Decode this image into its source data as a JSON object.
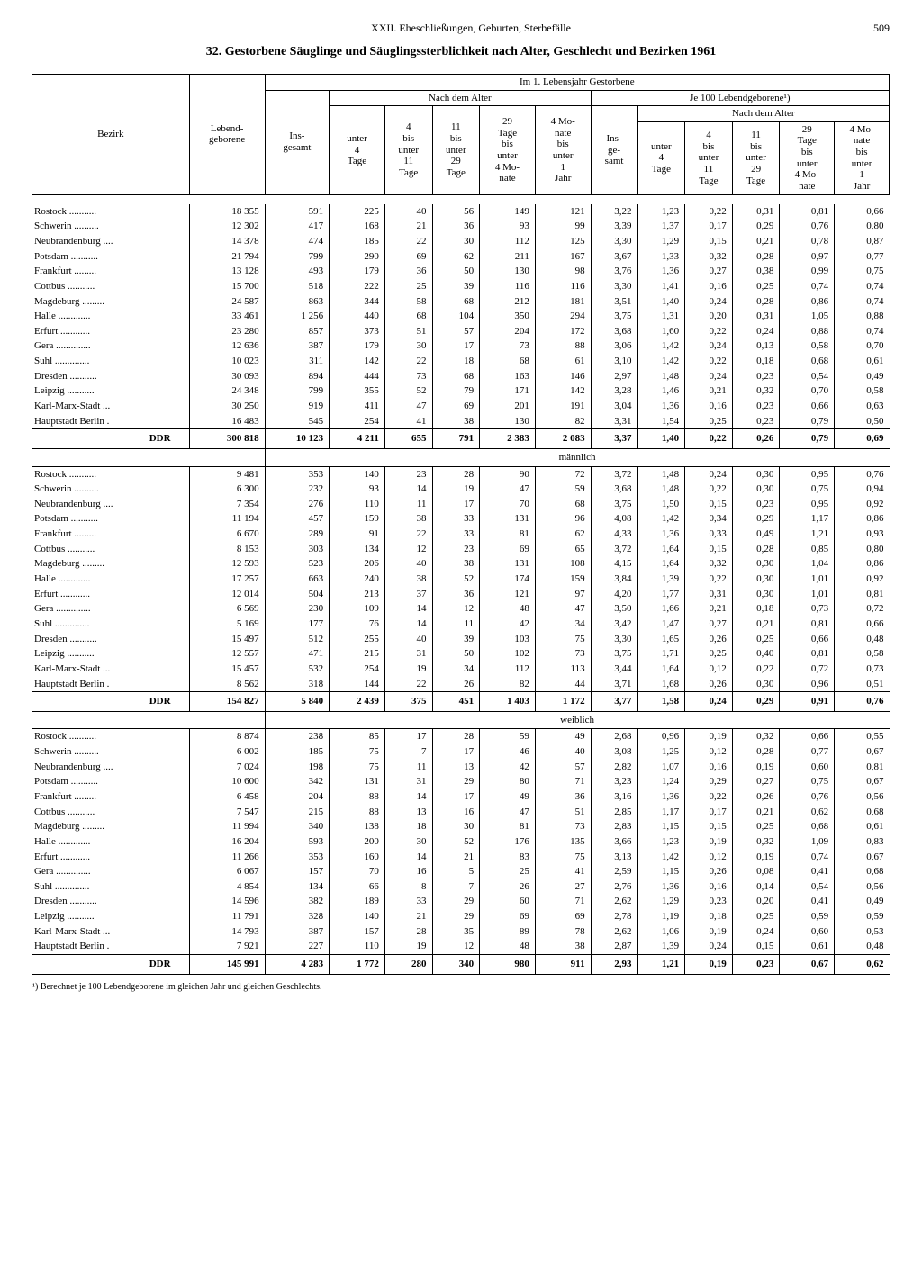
{
  "header": {
    "chapter": "XXII. Eheschließungen, Geburten, Sterbefälle",
    "page": "509"
  },
  "title": "32. Gestorbene Säuglinge und Säuglingssterblichkeit nach Alter, Geschlecht und Bezirken 1961",
  "col_headers": {
    "bezirk": "Bezirk",
    "lebend": "Lebend-\ngeborene",
    "im_ersten": "Im 1. Lebensjahr Gestorbene",
    "je100": "Je 100 Lebendgeborene¹)",
    "nach_alter": "Nach dem Alter",
    "insgesamt": "Ins-\ngesamt",
    "insgesamt2": "Ins-\nge-\nsamt",
    "c1": "unter\n4\nTage",
    "c2": "4\nbis\nunter\n11\nTage",
    "c3": "11\nbis\nunter\n29\nTage",
    "c4": "29\nTage\nbis\nunter\n4 Mo-\nnate",
    "c5": "4 Mo-\nnate\nbis\nunter\n1\nJahr"
  },
  "sections": [
    {
      "label": "",
      "rows": [
        [
          "Rostock",
          "18 355",
          "591",
          "225",
          "40",
          "56",
          "149",
          "121",
          "3,22",
          "1,23",
          "0,22",
          "0,31",
          "0,81",
          "0,66"
        ],
        [
          "Schwerin",
          "12 302",
          "417",
          "168",
          "21",
          "36",
          "93",
          "99",
          "3,39",
          "1,37",
          "0,17",
          "0,29",
          "0,76",
          "0,80"
        ],
        [
          "Neubrandenburg",
          "14 378",
          "474",
          "185",
          "22",
          "30",
          "112",
          "125",
          "3,30",
          "1,29",
          "0,15",
          "0,21",
          "0,78",
          "0,87"
        ],
        [
          "Potsdam",
          "21 794",
          "799",
          "290",
          "69",
          "62",
          "211",
          "167",
          "3,67",
          "1,33",
          "0,32",
          "0,28",
          "0,97",
          "0,77"
        ],
        [
          "Frankfurt",
          "13 128",
          "493",
          "179",
          "36",
          "50",
          "130",
          "98",
          "3,76",
          "1,36",
          "0,27",
          "0,38",
          "0,99",
          "0,75"
        ],
        [
          "Cottbus",
          "15 700",
          "518",
          "222",
          "25",
          "39",
          "116",
          "116",
          "3,30",
          "1,41",
          "0,16",
          "0,25",
          "0,74",
          "0,74"
        ],
        [
          "Magdeburg",
          "24 587",
          "863",
          "344",
          "58",
          "68",
          "212",
          "181",
          "3,51",
          "1,40",
          "0,24",
          "0,28",
          "0,86",
          "0,74"
        ],
        [
          "Halle",
          "33 461",
          "1 256",
          "440",
          "68",
          "104",
          "350",
          "294",
          "3,75",
          "1,31",
          "0,20",
          "0,31",
          "1,05",
          "0,88"
        ],
        [
          "Erfurt",
          "23 280",
          "857",
          "373",
          "51",
          "57",
          "204",
          "172",
          "3,68",
          "1,60",
          "0,22",
          "0,24",
          "0,88",
          "0,74"
        ],
        [
          "Gera",
          "12 636",
          "387",
          "179",
          "30",
          "17",
          "73",
          "88",
          "3,06",
          "1,42",
          "0,24",
          "0,13",
          "0,58",
          "0,70"
        ],
        [
          "Suhl",
          "10 023",
          "311",
          "142",
          "22",
          "18",
          "68",
          "61",
          "3,10",
          "1,42",
          "0,22",
          "0,18",
          "0,68",
          "0,61"
        ],
        [
          "Dresden",
          "30 093",
          "894",
          "444",
          "73",
          "68",
          "163",
          "146",
          "2,97",
          "1,48",
          "0,24",
          "0,23",
          "0,54",
          "0,49"
        ],
        [
          "Leipzig",
          "24 348",
          "799",
          "355",
          "52",
          "79",
          "171",
          "142",
          "3,28",
          "1,46",
          "0,21",
          "0,32",
          "0,70",
          "0,58"
        ],
        [
          "Karl-Marx-Stadt",
          "30 250",
          "919",
          "411",
          "47",
          "69",
          "201",
          "191",
          "3,04",
          "1,36",
          "0,16",
          "0,23",
          "0,66",
          "0,63"
        ],
        [
          "Hauptstadt Berlin",
          "16 483",
          "545",
          "254",
          "41",
          "38",
          "130",
          "82",
          "3,31",
          "1,54",
          "0,25",
          "0,23",
          "0,79",
          "0,50"
        ]
      ],
      "total": [
        "DDR",
        "300 818",
        "10 123",
        "4 211",
        "655",
        "791",
        "2 383",
        "2 083",
        "3,37",
        "1,40",
        "0,22",
        "0,26",
        "0,79",
        "0,69"
      ]
    },
    {
      "label": "männlich",
      "rows": [
        [
          "Rostock",
          "9 481",
          "353",
          "140",
          "23",
          "28",
          "90",
          "72",
          "3,72",
          "1,48",
          "0,24",
          "0,30",
          "0,95",
          "0,76"
        ],
        [
          "Schwerin",
          "6 300",
          "232",
          "93",
          "14",
          "19",
          "47",
          "59",
          "3,68",
          "1,48",
          "0,22",
          "0,30",
          "0,75",
          "0,94"
        ],
        [
          "Neubrandenburg",
          "7 354",
          "276",
          "110",
          "11",
          "17",
          "70",
          "68",
          "3,75",
          "1,50",
          "0,15",
          "0,23",
          "0,95",
          "0,92"
        ],
        [
          "Potsdam",
          "11 194",
          "457",
          "159",
          "38",
          "33",
          "131",
          "96",
          "4,08",
          "1,42",
          "0,34",
          "0,29",
          "1,17",
          "0,86"
        ],
        [
          "Frankfurt",
          "6 670",
          "289",
          "91",
          "22",
          "33",
          "81",
          "62",
          "4,33",
          "1,36",
          "0,33",
          "0,49",
          "1,21",
          "0,93"
        ],
        [
          "Cottbus",
          "8 153",
          "303",
          "134",
          "12",
          "23",
          "69",
          "65",
          "3,72",
          "1,64",
          "0,15",
          "0,28",
          "0,85",
          "0,80"
        ],
        [
          "Magdeburg",
          "12 593",
          "523",
          "206",
          "40",
          "38",
          "131",
          "108",
          "4,15",
          "1,64",
          "0,32",
          "0,30",
          "1,04",
          "0,86"
        ],
        [
          "Halle",
          "17 257",
          "663",
          "240",
          "38",
          "52",
          "174",
          "159",
          "3,84",
          "1,39",
          "0,22",
          "0,30",
          "1,01",
          "0,92"
        ],
        [
          "Erfurt",
          "12 014",
          "504",
          "213",
          "37",
          "36",
          "121",
          "97",
          "4,20",
          "1,77",
          "0,31",
          "0,30",
          "1,01",
          "0,81"
        ],
        [
          "Gera",
          "6 569",
          "230",
          "109",
          "14",
          "12",
          "48",
          "47",
          "3,50",
          "1,66",
          "0,21",
          "0,18",
          "0,73",
          "0,72"
        ],
        [
          "Suhl",
          "5 169",
          "177",
          "76",
          "14",
          "11",
          "42",
          "34",
          "3,42",
          "1,47",
          "0,27",
          "0,21",
          "0,81",
          "0,66"
        ],
        [
          "Dresden",
          "15 497",
          "512",
          "255",
          "40",
          "39",
          "103",
          "75",
          "3,30",
          "1,65",
          "0,26",
          "0,25",
          "0,66",
          "0,48"
        ],
        [
          "Leipzig",
          "12 557",
          "471",
          "215",
          "31",
          "50",
          "102",
          "73",
          "3,75",
          "1,71",
          "0,25",
          "0,40",
          "0,81",
          "0,58"
        ],
        [
          "Karl-Marx-Stadt",
          "15 457",
          "532",
          "254",
          "19",
          "34",
          "112",
          "113",
          "3,44",
          "1,64",
          "0,12",
          "0,22",
          "0,72",
          "0,73"
        ],
        [
          "Hauptstadt Berlin",
          "8 562",
          "318",
          "144",
          "22",
          "26",
          "82",
          "44",
          "3,71",
          "1,68",
          "0,26",
          "0,30",
          "0,96",
          "0,51"
        ]
      ],
      "total": [
        "DDR",
        "154 827",
        "5 840",
        "2 439",
        "375",
        "451",
        "1 403",
        "1 172",
        "3,77",
        "1,58",
        "0,24",
        "0,29",
        "0,91",
        "0,76"
      ]
    },
    {
      "label": "weiblich",
      "rows": [
        [
          "Rostock",
          "8 874",
          "238",
          "85",
          "17",
          "28",
          "59",
          "49",
          "2,68",
          "0,96",
          "0,19",
          "0,32",
          "0,66",
          "0,55"
        ],
        [
          "Schwerin",
          "6 002",
          "185",
          "75",
          "7",
          "17",
          "46",
          "40",
          "3,08",
          "1,25",
          "0,12",
          "0,28",
          "0,77",
          "0,67"
        ],
        [
          "Neubrandenburg",
          "7 024",
          "198",
          "75",
          "11",
          "13",
          "42",
          "57",
          "2,82",
          "1,07",
          "0,16",
          "0,19",
          "0,60",
          "0,81"
        ],
        [
          "Potsdam",
          "10 600",
          "342",
          "131",
          "31",
          "29",
          "80",
          "71",
          "3,23",
          "1,24",
          "0,29",
          "0,27",
          "0,75",
          "0,67"
        ],
        [
          "Frankfurt",
          "6 458",
          "204",
          "88",
          "14",
          "17",
          "49",
          "36",
          "3,16",
          "1,36",
          "0,22",
          "0,26",
          "0,76",
          "0,56"
        ],
        [
          "Cottbus",
          "7 547",
          "215",
          "88",
          "13",
          "16",
          "47",
          "51",
          "2,85",
          "1,17",
          "0,17",
          "0,21",
          "0,62",
          "0,68"
        ],
        [
          "Magdeburg",
          "11 994",
          "340",
          "138",
          "18",
          "30",
          "81",
          "73",
          "2,83",
          "1,15",
          "0,15",
          "0,25",
          "0,68",
          "0,61"
        ],
        [
          "Halle",
          "16 204",
          "593",
          "200",
          "30",
          "52",
          "176",
          "135",
          "3,66",
          "1,23",
          "0,19",
          "0,32",
          "1,09",
          "0,83"
        ],
        [
          "Erfurt",
          "11 266",
          "353",
          "160",
          "14",
          "21",
          "83",
          "75",
          "3,13",
          "1,42",
          "0,12",
          "0,19",
          "0,74",
          "0,67"
        ],
        [
          "Gera",
          "6 067",
          "157",
          "70",
          "16",
          "5",
          "25",
          "41",
          "2,59",
          "1,15",
          "0,26",
          "0,08",
          "0,41",
          "0,68"
        ],
        [
          "Suhl",
          "4 854",
          "134",
          "66",
          "8",
          "7",
          "26",
          "27",
          "2,76",
          "1,36",
          "0,16",
          "0,14",
          "0,54",
          "0,56"
        ],
        [
          "Dresden",
          "14 596",
          "382",
          "189",
          "33",
          "29",
          "60",
          "71",
          "2,62",
          "1,29",
          "0,23",
          "0,20",
          "0,41",
          "0,49"
        ],
        [
          "Leipzig",
          "11 791",
          "328",
          "140",
          "21",
          "29",
          "69",
          "69",
          "2,78",
          "1,19",
          "0,18",
          "0,25",
          "0,59",
          "0,59"
        ],
        [
          "Karl-Marx-Stadt",
          "14 793",
          "387",
          "157",
          "28",
          "35",
          "89",
          "78",
          "2,62",
          "1,06",
          "0,19",
          "0,24",
          "0,60",
          "0,53"
        ],
        [
          "Hauptstadt Berlin",
          "7 921",
          "227",
          "110",
          "19",
          "12",
          "48",
          "38",
          "2,87",
          "1,39",
          "0,24",
          "0,15",
          "0,61",
          "0,48"
        ]
      ],
      "total": [
        "DDR",
        "145 991",
        "4 283",
        "1 772",
        "280",
        "340",
        "980",
        "911",
        "2,93",
        "1,21",
        "0,19",
        "0,23",
        "0,67",
        "0,62"
      ]
    }
  ],
  "footnote": "¹) Berechnet je 100 Lebendgeborene im gleichen Jahr und gleichen Geschlechts."
}
